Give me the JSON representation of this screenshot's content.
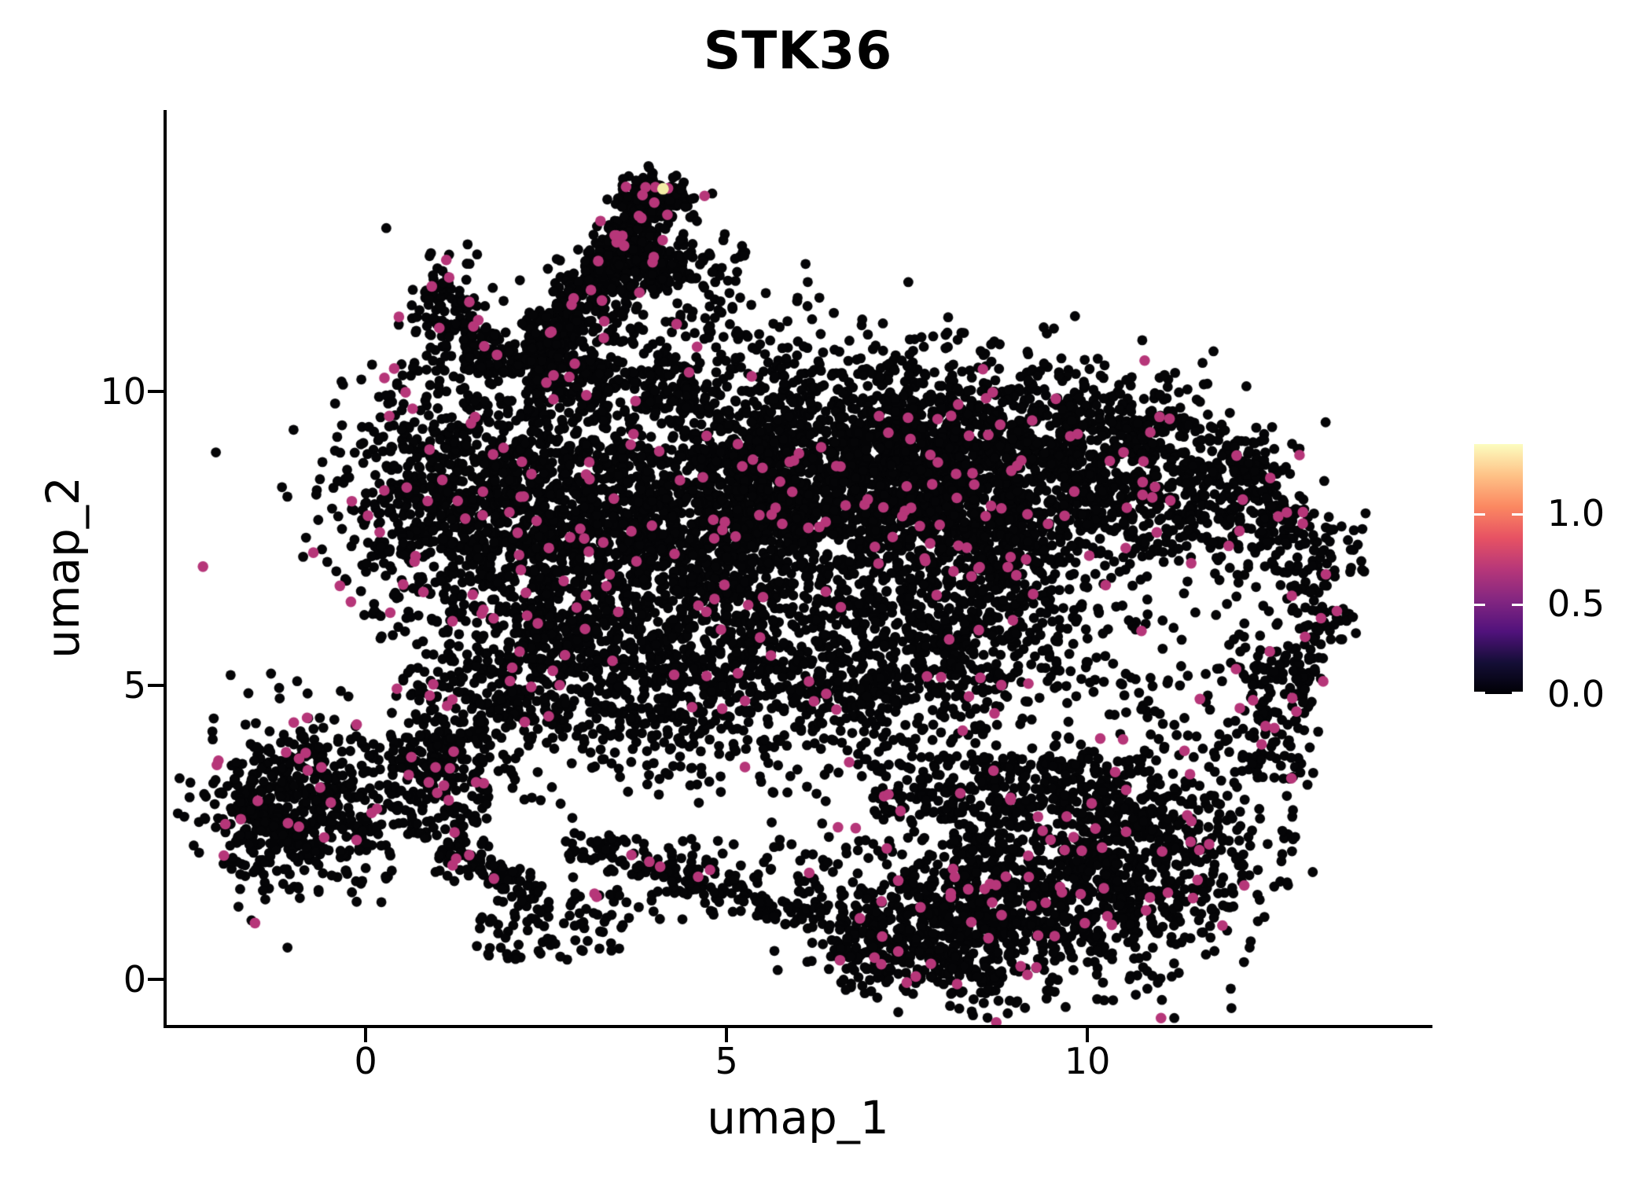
{
  "title": "STK36",
  "axes": {
    "x_label": "umap_1",
    "y_label": "umap_2",
    "x_ticks": [
      {
        "value": 0,
        "label": "0"
      },
      {
        "value": 5,
        "label": "5"
      },
      {
        "value": 10,
        "label": "10"
      }
    ],
    "y_ticks": [
      {
        "value": 0,
        "label": "0"
      },
      {
        "value": 5,
        "label": "5"
      },
      {
        "value": 10,
        "label": "10"
      }
    ]
  },
  "colorbar": {
    "vmin": 0.0,
    "vmax": 1.38,
    "ticks": [
      {
        "value": 1.0,
        "label": "1.0"
      },
      {
        "value": 0.5,
        "label": "0.5"
      },
      {
        "value": 0.0,
        "label": "0.0"
      }
    ],
    "colormap": "magma",
    "stops": [
      "#000004",
      "#140e36",
      "#51127c",
      "#832681",
      "#b73779",
      "#e75263",
      "#fb8861",
      "#fec287",
      "#fcfdbf"
    ]
  },
  "chart_data": {
    "type": "scatter",
    "title": "STK36",
    "xlabel": "umap_1",
    "ylabel": "umap_2",
    "xlim": [
      -2.78,
      14.76
    ],
    "ylim": [
      -0.79,
      14.79
    ],
    "grid": false,
    "legend_position": "right",
    "point_color_zero": "#050507",
    "point_color_expressing": "#B63679",
    "point_radius_px": 6.4,
    "seed": 42,
    "max_point": {
      "x": 4.12,
      "y": 13.45,
      "value": 1.38,
      "color": "#F3EDA6"
    },
    "clusters": [
      {
        "t": "s",
        "a": [
          2.12,
          10.24
        ],
        "b": [
          4.14,
          13.49
        ],
        "w": 0.2,
        "n": 420,
        "p": 0.03
      },
      {
        "t": "g",
        "c": [
          4.05,
          13.25
        ],
        "s": [
          0.28,
          0.22
        ],
        "n": 130,
        "p": 0.04
      },
      {
        "t": "s",
        "a": [
          2.65,
          10.3
        ],
        "b": [
          3.9,
          12.4
        ],
        "w": 0.35,
        "n": 170,
        "p": 0.03
      },
      {
        "t": "g",
        "c": [
          1.15,
          11.35
        ],
        "s": [
          0.3,
          0.42
        ],
        "n": 120,
        "p": 0.05
      },
      {
        "t": "b",
        "a": [
          1.35,
          10.3
        ],
        "b": [
          2.1,
          11.0
        ],
        "n": 60,
        "p": 0.03
      },
      {
        "t": "g",
        "c": [
          3.95,
          12.15
        ],
        "s": [
          0.4,
          0.3
        ],
        "n": 140,
        "p": 0.05
      },
      {
        "t": "b",
        "a": [
          4.3,
          10.8
        ],
        "b": [
          5.3,
          12.7
        ],
        "n": 45,
        "p": 0.02
      },
      {
        "t": "b",
        "a": [
          2.2,
          9.6
        ],
        "b": [
          4.6,
          10.6
        ],
        "n": 160,
        "p": 0.03
      },
      {
        "t": "b",
        "a": [
          3.0,
          9.6
        ],
        "b": [
          6.2,
          11.6
        ],
        "n": 40,
        "p": 0.02
      },
      {
        "t": "g",
        "c": [
          1.25,
          8.1
        ],
        "s": [
          0.85,
          1.15
        ],
        "n": 800,
        "p": 0.045
      },
      {
        "t": "g",
        "c": [
          2.9,
          7.6
        ],
        "s": [
          1.0,
          1.4
        ],
        "n": 900,
        "p": 0.035
      },
      {
        "t": "g",
        "c": [
          4.7,
          7.9
        ],
        "s": [
          1.0,
          1.4
        ],
        "n": 1000,
        "p": 0.03
      },
      {
        "t": "g",
        "c": [
          6.3,
          8.4
        ],
        "s": [
          1.05,
          1.15
        ],
        "n": 1100,
        "p": 0.03
      },
      {
        "t": "g",
        "c": [
          7.9,
          8.9
        ],
        "s": [
          0.95,
          0.85
        ],
        "n": 850,
        "p": 0.03
      },
      {
        "t": "g",
        "c": [
          8.7,
          7.3
        ],
        "s": [
          0.9,
          1.0
        ],
        "n": 650,
        "p": 0.03
      },
      {
        "t": "g",
        "c": [
          9.9,
          9.2
        ],
        "s": [
          0.85,
          0.65
        ],
        "n": 450,
        "p": 0.035
      },
      {
        "t": "s",
        "a": [
          11.9,
          9.1
        ],
        "b": [
          13.25,
          6.6
        ],
        "w": 0.35,
        "n": 240,
        "p": 0.05
      },
      {
        "t": "s",
        "a": [
          13.3,
          6.4
        ],
        "b": [
          12.3,
          3.4
        ],
        "w": 0.28,
        "n": 190,
        "p": 0.05
      },
      {
        "t": "g",
        "c": [
          11.2,
          8.3
        ],
        "s": [
          0.8,
          0.75
        ],
        "n": 380,
        "p": 0.035
      },
      {
        "t": "b",
        "a": [
          9.9,
          3.5
        ],
        "b": [
          12.6,
          6.4
        ],
        "n": 110,
        "p": 0.05
      },
      {
        "t": "g",
        "c": [
          5.0,
          5.0
        ],
        "s": [
          1.3,
          0.85
        ],
        "n": 550,
        "p": 0.03
      },
      {
        "t": "g",
        "c": [
          2.5,
          5.4
        ],
        "s": [
          0.8,
          0.9
        ],
        "n": 340,
        "p": 0.04
      },
      {
        "t": "g",
        "c": [
          7.7,
          5.4
        ],
        "s": [
          1.05,
          0.8
        ],
        "n": 480,
        "p": 0.03
      },
      {
        "t": "g",
        "c": [
          1.3,
          4.1
        ],
        "s": [
          0.5,
          0.6
        ],
        "n": 160,
        "p": 0.04
      },
      {
        "t": "g",
        "c": [
          -0.75,
          3.0
        ],
        "s": [
          0.7,
          0.75
        ],
        "n": 500,
        "p": 0.05
      },
      {
        "t": "g",
        "c": [
          -1.5,
          2.6
        ],
        "s": [
          0.35,
          0.5
        ],
        "n": 120,
        "p": 0.04
      },
      {
        "t": "b",
        "a": [
          0.3,
          2.3
        ],
        "b": [
          1.7,
          4.2
        ],
        "n": 130,
        "p": 0.03
      },
      {
        "t": "s",
        "a": [
          1.05,
          2.2
        ],
        "b": [
          2.4,
          1.5
        ],
        "w": 0.16,
        "n": 100,
        "p": 0.03
      },
      {
        "t": "b",
        "a": [
          1.5,
          0.3
        ],
        "b": [
          3.6,
          1.4
        ],
        "n": 70,
        "p": 0.02
      },
      {
        "t": "s",
        "a": [
          2.7,
          2.4
        ],
        "b": [
          6.4,
          1.0
        ],
        "w": 0.14,
        "n": 130,
        "p": 0.03
      },
      {
        "t": "b",
        "a": [
          2.8,
          0.9
        ],
        "b": [
          6.4,
          2.4
        ],
        "n": 110,
        "p": 0.025
      },
      {
        "t": "g",
        "c": [
          9.3,
          1.5
        ],
        "s": [
          1.25,
          0.85
        ],
        "n": 950,
        "p": 0.035
      },
      {
        "t": "g",
        "c": [
          7.7,
          1.0
        ],
        "s": [
          0.85,
          0.6
        ],
        "n": 320,
        "p": 0.03
      },
      {
        "t": "g",
        "c": [
          10.9,
          2.3
        ],
        "s": [
          0.8,
          0.8
        ],
        "n": 380,
        "p": 0.04
      },
      {
        "t": "s",
        "a": [
          6.5,
          0.6
        ],
        "b": [
          8.8,
          0.0
        ],
        "w": 0.25,
        "n": 150,
        "p": 0.03
      },
      {
        "t": "b",
        "a": [
          7.0,
          2.8
        ],
        "b": [
          10.6,
          3.8
        ],
        "n": 260,
        "p": 0.03
      }
    ]
  }
}
